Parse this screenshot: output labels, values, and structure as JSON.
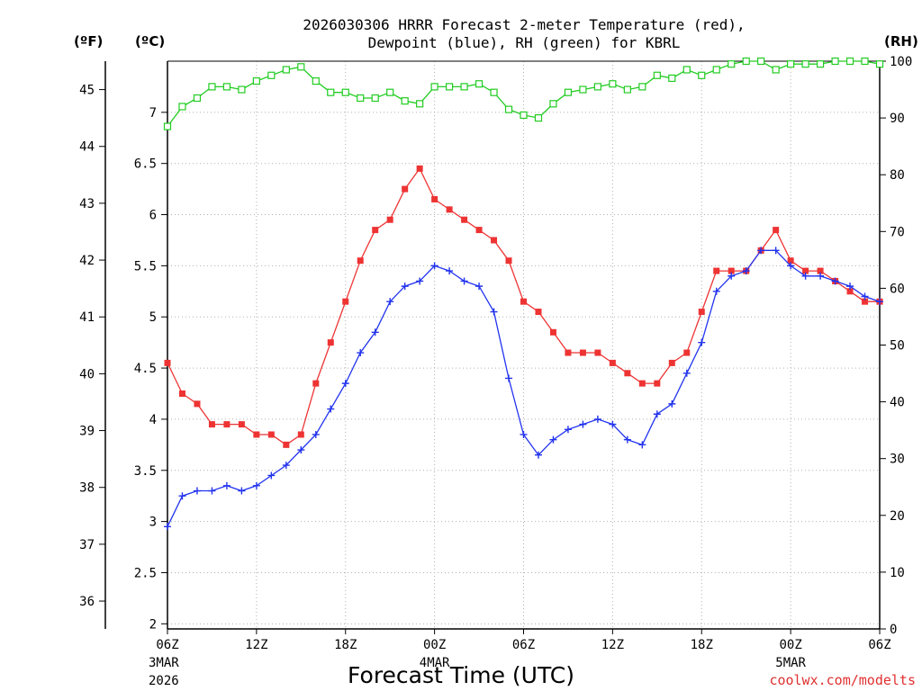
{
  "chart_data": {
    "type": "line",
    "title_line1": "2026030306 HRRR Forecast 2-meter Temperature (red),",
    "title_line2": "Dewpoint (blue), RH (green) for KBRL",
    "xlabel": "Forecast Time (UTC)",
    "credit": "coolwx.com/modelts",
    "unit_left_f": "(ºF)",
    "unit_left_c": "(ºC)",
    "unit_right": "(RH)",
    "x_range_hours": [
      0,
      48
    ],
    "x_ticks": [
      {
        "hour": 0,
        "label": "06Z",
        "date": "3MAR",
        "year": "2026"
      },
      {
        "hour": 6,
        "label": "12Z"
      },
      {
        "hour": 12,
        "label": "18Z"
      },
      {
        "hour": 18,
        "label": "00Z",
        "date": "4MAR"
      },
      {
        "hour": 24,
        "label": "06Z"
      },
      {
        "hour": 30,
        "label": "12Z"
      },
      {
        "hour": 36,
        "label": "18Z"
      },
      {
        "hour": 42,
        "label": "00Z",
        "date": "5MAR"
      },
      {
        "hour": 48,
        "label": "06Z"
      }
    ],
    "celsius_axis": {
      "range": [
        1.95,
        7.5
      ],
      "ticks": [
        2,
        2.5,
        3,
        3.5,
        4,
        4.5,
        5,
        5.5,
        6,
        6.5,
        7
      ]
    },
    "fahrenheit_axis": {
      "ticks": [
        36,
        37,
        38,
        39,
        40,
        41,
        42,
        43,
        44,
        45
      ]
    },
    "rh_axis": {
      "range": [
        0,
        100
      ],
      "ticks": [
        0,
        10,
        20,
        30,
        40,
        50,
        60,
        70,
        80,
        90,
        100
      ]
    },
    "series": [
      {
        "name": "Temperature (°C)",
        "color": "#ee3333",
        "marker": "filled-square",
        "axis": "celsius",
        "values": [
          4.55,
          4.25,
          4.15,
          3.95,
          3.95,
          3.95,
          3.85,
          3.85,
          3.75,
          3.85,
          4.35,
          4.75,
          5.15,
          5.55,
          5.85,
          5.95,
          6.25,
          6.45,
          6.15,
          6.05,
          5.95,
          5.85,
          5.75,
          5.55,
          5.15,
          5.05,
          4.85,
          4.65,
          4.65,
          4.65,
          4.55,
          4.45,
          4.35,
          4.35,
          4.55,
          4.65,
          5.05,
          5.45,
          5.45,
          5.45,
          5.65,
          5.85,
          5.55,
          5.45,
          5.45,
          5.35,
          5.25,
          5.15,
          5.15
        ]
      },
      {
        "name": "Dewpoint (°C)",
        "color": "#2233ee",
        "marker": "plus",
        "axis": "celsius",
        "values": [
          2.95,
          3.25,
          3.3,
          3.3,
          3.35,
          3.3,
          3.35,
          3.45,
          3.55,
          3.7,
          3.85,
          4.1,
          4.35,
          4.65,
          4.85,
          5.15,
          5.3,
          5.35,
          5.5,
          5.45,
          5.35,
          5.3,
          5.05,
          4.4,
          3.85,
          3.65,
          3.8,
          3.9,
          3.95,
          4.0,
          3.95,
          3.8,
          3.75,
          4.05,
          4.15,
          4.45,
          4.75,
          5.25,
          5.4,
          5.45,
          5.65,
          5.65,
          5.5,
          5.4,
          5.4,
          5.35,
          5.3,
          5.2,
          5.15
        ]
      },
      {
        "name": "Relative Humidity (%)",
        "color": "#22cc22",
        "marker": "open-square",
        "axis": "rh",
        "values": [
          88.5,
          92,
          93.5,
          95.5,
          95.5,
          95,
          96.5,
          97.5,
          98.5,
          99,
          96.5,
          94.5,
          94.5,
          93.5,
          93.5,
          94.5,
          93,
          92.5,
          95.5,
          95.5,
          95.5,
          96,
          94.5,
          91.5,
          90.5,
          90,
          92.5,
          94.5,
          95,
          95.5,
          96,
          95,
          95.5,
          97.5,
          97,
          98.5,
          97.5,
          98.5,
          99.5,
          100,
          100,
          98.5,
          99.5,
          99.5,
          99.5,
          100,
          100,
          100,
          99.5
        ]
      }
    ]
  }
}
